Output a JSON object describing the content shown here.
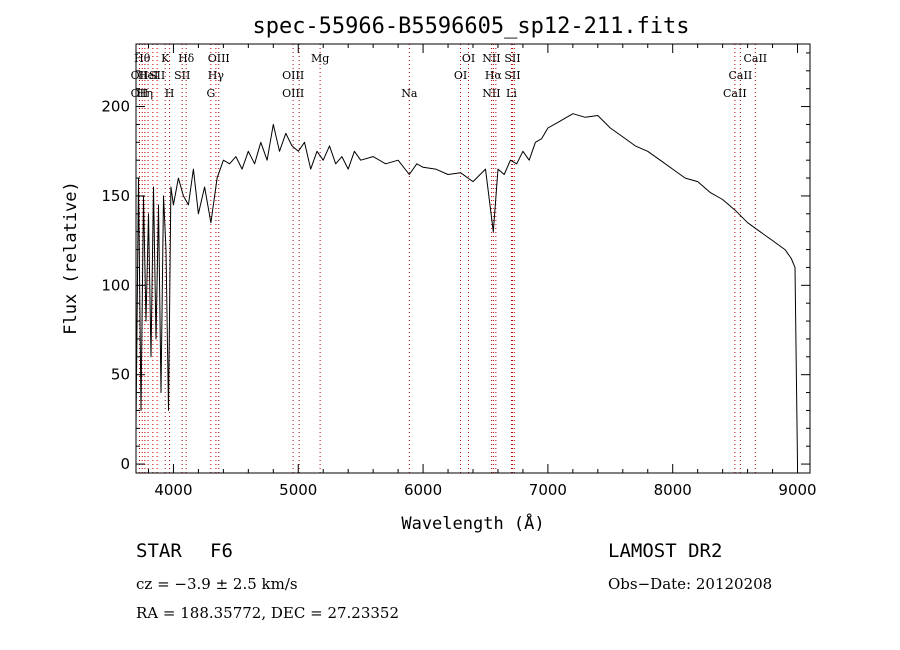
{
  "chart_data": {
    "type": "line",
    "title": "spec-55966-B5596605_sp12-211.fits",
    "xlabel": "Wavelength (Å)",
    "ylabel": "Flux (relative)",
    "xlim": [
      3700,
      9100
    ],
    "ylim": [
      -5,
      235
    ],
    "xticks": [
      4000,
      5000,
      6000,
      7000,
      8000,
      9000
    ],
    "yticks": [
      0,
      50,
      100,
      150,
      200
    ],
    "grid": false,
    "legend": "none",
    "line_color": "#000000",
    "marker_line_color": "#c00000",
    "series": [
      {
        "x": [
          3700,
          3720,
          3740,
          3760,
          3780,
          3800,
          3820,
          3840,
          3860,
          3880,
          3900,
          3920,
          3940,
          3960,
          3980,
          4000,
          4040,
          4080,
          4120,
          4160,
          4200,
          4250,
          4300,
          4350,
          4400,
          4450,
          4500,
          4550,
          4600,
          4650,
          4700,
          4750,
          4800,
          4850,
          4900,
          4950,
          5000,
          5050,
          5100,
          5150,
          5200,
          5250,
          5300,
          5350,
          5400,
          5450,
          5500,
          5600,
          5700,
          5800,
          5890,
          5950,
          6000,
          6100,
          6200,
          6300,
          6400,
          6500,
          6563,
          6600,
          6650,
          6700,
          6750,
          6800,
          6850,
          6900,
          6950,
          7000,
          7100,
          7200,
          7300,
          7400,
          7500,
          7600,
          7700,
          7800,
          7900,
          8000,
          8100,
          8200,
          8300,
          8400,
          8500,
          8600,
          8700,
          8800,
          8900,
          8950,
          8980,
          9000
        ],
        "y": [
          20,
          160,
          30,
          150,
          80,
          140,
          60,
          155,
          70,
          145,
          40,
          150,
          120,
          30,
          155,
          145,
          160,
          150,
          145,
          165,
          140,
          155,
          135,
          160,
          170,
          168,
          172,
          165,
          175,
          168,
          180,
          170,
          190,
          175,
          185,
          178,
          175,
          180,
          165,
          175,
          170,
          178,
          168,
          172,
          165,
          175,
          170,
          172,
          168,
          170,
          162,
          168,
          166,
          165,
          162,
          163,
          158,
          165,
          130,
          165,
          162,
          170,
          168,
          175,
          170,
          180,
          182,
          188,
          192,
          196,
          194,
          195,
          188,
          183,
          178,
          175,
          170,
          165,
          160,
          158,
          152,
          148,
          142,
          135,
          130,
          125,
          120,
          115,
          110,
          0
        ]
      }
    ],
    "lines": [
      {
        "x": 3728,
        "labels": [
          "OII",
          "OII"
        ],
        "rows": [
          1,
          2
        ]
      },
      {
        "x": 3750,
        "labels": [
          "Hθ"
        ],
        "rows": [
          0
        ]
      },
      {
        "x": 3771,
        "labels": [
          "Hη"
        ],
        "rows": [
          2
        ]
      },
      {
        "x": 3797,
        "labels": [
          "HeI"
        ],
        "rows": [
          1
        ]
      },
      {
        "x": 3835,
        "labels": [],
        "rows": []
      },
      {
        "x": 3869,
        "labels": [
          "SII"
        ],
        "rows": [
          1
        ]
      },
      {
        "x": 3934,
        "labels": [
          "K"
        ],
        "rows": [
          0
        ]
      },
      {
        "x": 3969,
        "labels": [
          "H"
        ],
        "rows": [
          2
        ]
      },
      {
        "x": 4070,
        "labels": [
          "SII"
        ],
        "rows": [
          1
        ]
      },
      {
        "x": 4102,
        "labels": [
          "Hδ"
        ],
        "rows": [
          0
        ]
      },
      {
        "x": 4300,
        "labels": [
          "G"
        ],
        "rows": [
          2
        ]
      },
      {
        "x": 4340,
        "labels": [
          "Hγ"
        ],
        "rows": [
          1
        ]
      },
      {
        "x": 4363,
        "labels": [
          "OIII"
        ],
        "rows": [
          0
        ]
      },
      {
        "x": 4959,
        "labels": [
          "OIII",
          "OIII"
        ],
        "rows": [
          1,
          2
        ]
      },
      {
        "x": 5007,
        "labels": [],
        "rows": []
      },
      {
        "x": 5175,
        "labels": [
          "Mg"
        ],
        "rows": [
          0
        ]
      },
      {
        "x": 5890,
        "labels": [
          "Na"
        ],
        "rows": [
          2
        ]
      },
      {
        "x": 6300,
        "labels": [
          "OI"
        ],
        "rows": [
          1
        ]
      },
      {
        "x": 6364,
        "labels": [
          "OI"
        ],
        "rows": [
          0
        ]
      },
      {
        "x": 6548,
        "labels": [
          "NII",
          "NII"
        ],
        "rows": [
          0,
          2
        ]
      },
      {
        "x": 6563,
        "labels": [
          "Hα"
        ],
        "rows": [
          1
        ]
      },
      {
        "x": 6583,
        "labels": [],
        "rows": []
      },
      {
        "x": 6708,
        "labels": [
          "Li"
        ],
        "rows": [
          2
        ]
      },
      {
        "x": 6716,
        "labels": [
          "SII",
          "SII"
        ],
        "rows": [
          0,
          1
        ]
      },
      {
        "x": 6731,
        "labels": [],
        "rows": []
      },
      {
        "x": 8498,
        "labels": [
          "CaII"
        ],
        "rows": [
          2
        ]
      },
      {
        "x": 8542,
        "labels": [
          "CaII"
        ],
        "rows": [
          1
        ]
      },
      {
        "x": 8662,
        "labels": [
          "CaII"
        ],
        "rows": [
          0
        ]
      }
    ]
  },
  "info": {
    "class": "STAR",
    "subclass": "F6",
    "survey": "LAMOST DR2",
    "cz": "cz = −3.9 ± 2.5 km/s",
    "obs_date": "Obs−Date: 20120208",
    "coords": "RA = 188.35772, DEC =  27.23352"
  }
}
